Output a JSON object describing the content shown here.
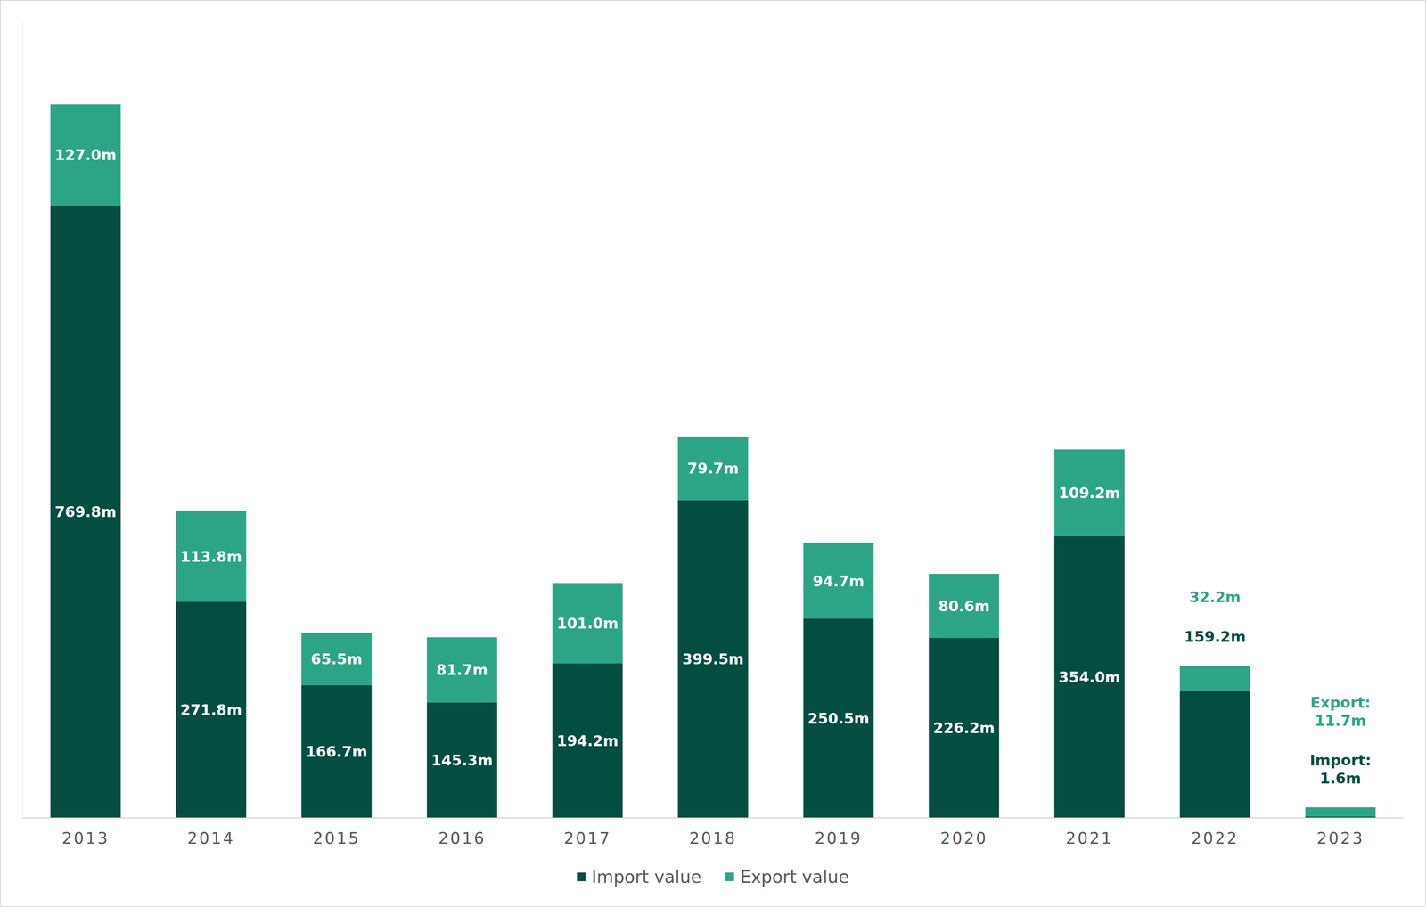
{
  "chart_data": {
    "type": "bar",
    "stacked": true,
    "data_labels": true,
    "tick_labels": "x",
    "legend": "bottom",
    "categories": [
      "2013",
      "2014",
      "2015",
      "2016",
      "2017",
      "2018",
      "2019",
      "2020",
      "2021",
      "2022",
      "2023"
    ],
    "ylim": [
      0,
      1000
    ],
    "series": [
      {
        "name": "Import value",
        "color": "#034d41",
        "values": [
          769.8,
          271.8,
          166.7,
          145.3,
          194.2,
          399.5,
          250.5,
          226.2,
          354.0,
          159.2,
          1.6
        ],
        "value_labels": [
          "769.8m",
          "271.8m",
          "166.7m",
          "145.3m",
          "194.2m",
          "399.5m",
          "250.5m",
          "226.2m",
          "354.0m",
          "159.2m",
          "1.6m"
        ]
      },
      {
        "name": "Export value",
        "color": "#2ca586",
        "values": [
          127.0,
          113.8,
          65.5,
          81.7,
          101.0,
          79.7,
          94.7,
          80.6,
          109.2,
          32.2,
          11.7
        ],
        "value_labels": [
          "127.0m",
          "113.8m",
          "65.5m",
          "81.7m",
          "101.0m",
          "79.7m",
          "94.7m",
          "80.6m",
          "109.2m",
          "32.2m",
          "11.7m"
        ]
      }
    ],
    "annotations": [
      {
        "text": "Export:",
        "category": "2023",
        "series": "Export value"
      },
      {
        "text": "Import:",
        "category": "2023",
        "series": "Import value"
      }
    ]
  }
}
